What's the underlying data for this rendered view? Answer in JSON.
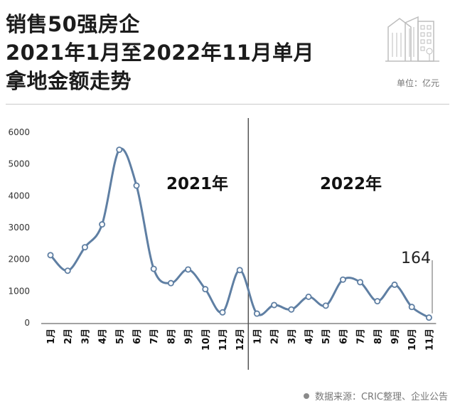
{
  "header": {
    "title_lines": [
      "销售50强房企",
      "2021年1月至2022年11月单月",
      "拿地金额走势"
    ],
    "unit": "单位：亿元"
  },
  "footer": {
    "source": "数据来源：CRIC整理、企业公告"
  },
  "icons": {
    "header_art": "building-icon",
    "source_bullet": "dot-icon"
  },
  "colors": {
    "line": "#5f7fa3",
    "marker_fill": "#ffffff",
    "divider": "#555555"
  },
  "chart_data": {
    "type": "line",
    "categories": [
      "1月",
      "2月",
      "3月",
      "4月",
      "5月",
      "6月",
      "7月",
      "8月",
      "9月",
      "10月",
      "11月",
      "12月",
      "1月",
      "2月",
      "3月",
      "4月",
      "5月",
      "6月",
      "7月",
      "8月",
      "9月",
      "10月",
      "11月"
    ],
    "series": [
      {
        "values": [
          2130,
          1640,
          2380,
          3100,
          5450,
          4320,
          1700,
          1250,
          1680,
          1060,
          330,
          1660,
          290,
          560,
          420,
          820,
          540,
          1360,
          1280,
          680,
          1200,
          500,
          164
        ]
      }
    ],
    "ylim": [
      0,
      6000
    ],
    "yticks": [
      0,
      1000,
      2000,
      3000,
      4000,
      5000,
      6000
    ],
    "year_labels": [
      "2021年",
      "2022年"
    ],
    "annotation": {
      "text": "164"
    },
    "smooth": true,
    "grid": false
  }
}
